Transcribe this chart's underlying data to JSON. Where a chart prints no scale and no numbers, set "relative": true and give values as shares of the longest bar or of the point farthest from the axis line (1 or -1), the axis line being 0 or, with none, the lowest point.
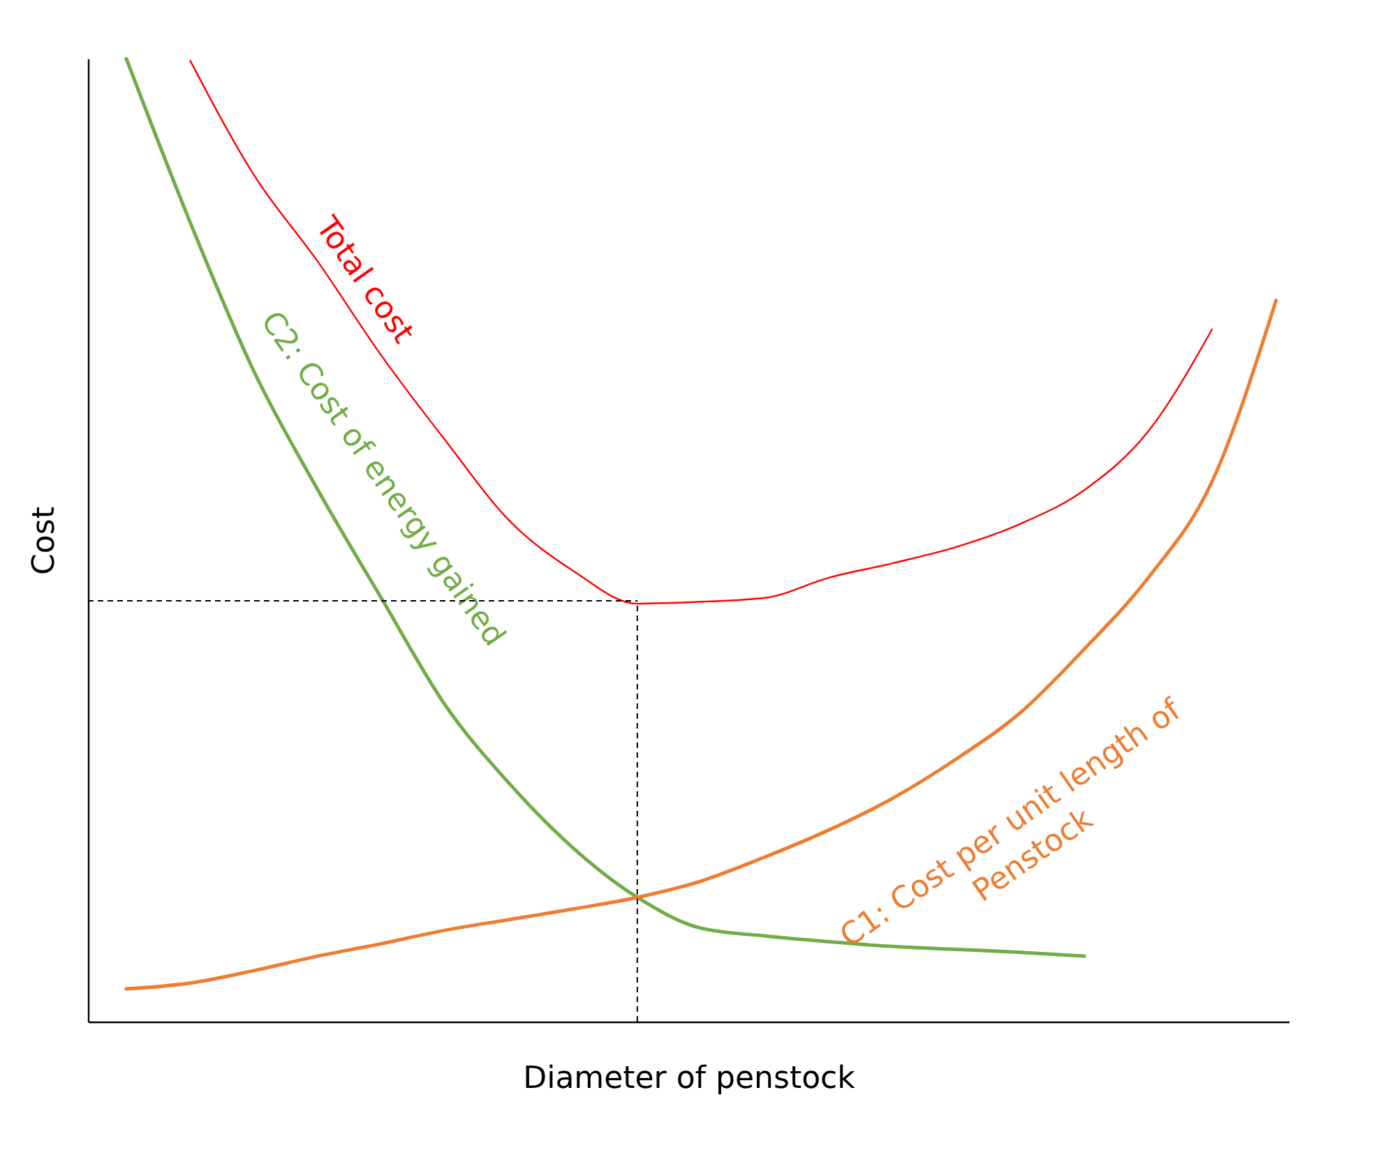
{
  "chart_data": {
    "type": "line",
    "relative": true,
    "xlabel": "Diameter of penstock",
    "ylabel": "Cost",
    "legend": false,
    "marker": "none",
    "line_style": "solid",
    "categories": [
      null,
      null,
      null,
      null,
      null,
      null,
      null,
      null,
      null,
      null,
      null,
      null,
      null,
      null,
      null,
      null,
      null,
      null,
      null
    ],
    "series": [
      {
        "name": "Total cost",
        "color": "#ff0000",
        "values": [
          null,
          0.998,
          0.879,
          0.789,
          0.691,
          0.603,
          0.52,
          0.468,
          0.434,
          0.436,
          0.44,
          0.461,
          0.476,
          0.493,
          0.517,
          0.552,
          0.613,
          0.719,
          null
        ]
      },
      {
        "name": "C2: Cost of energy gained",
        "color": "#70ad47",
        "values": [
          1.0,
          0.83,
          0.675,
          0.552,
          0.439,
          0.328,
          0.247,
          0.18,
          0.129,
          0.097,
          0.089,
          0.083,
          0.078,
          0.075,
          0.072,
          0.068,
          null,
          null,
          null
        ]
      },
      {
        "name": "C1: Cost per unit length of Penstock",
        "color": "#ed7d31",
        "values": [
          0.034,
          0.04,
          0.053,
          0.068,
          0.081,
          0.095,
          0.106,
          0.117,
          0.129,
          0.146,
          0.171,
          0.199,
          0.232,
          0.273,
          0.321,
          0.387,
          0.461,
          0.561,
          0.749
        ]
      }
    ],
    "ref_lines": [
      {
        "axis": "y",
        "value": 0.437,
        "line_style": "dashed"
      },
      {
        "axis": "x",
        "line_style": "dashed"
      }
    ]
  }
}
